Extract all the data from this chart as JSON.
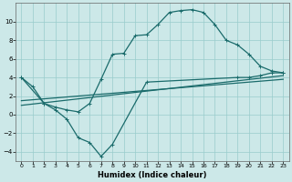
{
  "xlabel": "Humidex (Indice chaleur)",
  "bg_color": "#cce8e8",
  "grid_color": "#99cccc",
  "line_color": "#1a6b6b",
  "xlim": [
    -0.5,
    23.5
  ],
  "ylim": [
    -5,
    12
  ],
  "xticks": [
    0,
    1,
    2,
    3,
    4,
    5,
    6,
    7,
    8,
    9,
    10,
    11,
    12,
    13,
    14,
    15,
    16,
    17,
    18,
    19,
    20,
    21,
    22,
    23
  ],
  "yticks": [
    -4,
    -2,
    0,
    2,
    4,
    6,
    8,
    10
  ],
  "curve1_x": [
    0,
    1,
    2,
    3,
    4,
    5,
    6,
    7,
    8,
    9,
    10,
    11,
    12,
    13,
    14,
    15,
    16,
    17,
    18,
    19,
    20,
    21,
    22,
    23
  ],
  "curve1_y": [
    4.0,
    3.0,
    1.2,
    0.8,
    0.5,
    0.3,
    1.2,
    3.8,
    6.5,
    6.6,
    8.5,
    8.6,
    9.7,
    11.0,
    11.2,
    11.3,
    11.0,
    9.7,
    8.0,
    7.5,
    6.5,
    5.2,
    4.7,
    4.5
  ],
  "curve2_x": [
    0,
    2,
    3,
    4,
    5,
    6,
    7,
    8,
    11,
    19,
    20,
    21,
    22,
    23
  ],
  "curve2_y": [
    4.0,
    1.2,
    0.5,
    -0.5,
    -2.5,
    -3.0,
    -4.5,
    -3.2,
    3.5,
    4.0,
    4.0,
    4.2,
    4.5,
    4.5
  ],
  "line3_x": [
    0,
    23
  ],
  "line3_y": [
    1.5,
    3.8
  ],
  "line4_x": [
    0,
    23
  ],
  "line4_y": [
    1.0,
    4.2
  ],
  "xlabel_fontsize": 6,
  "tick_fontsize_x": 4.5,
  "tick_fontsize_y": 5
}
